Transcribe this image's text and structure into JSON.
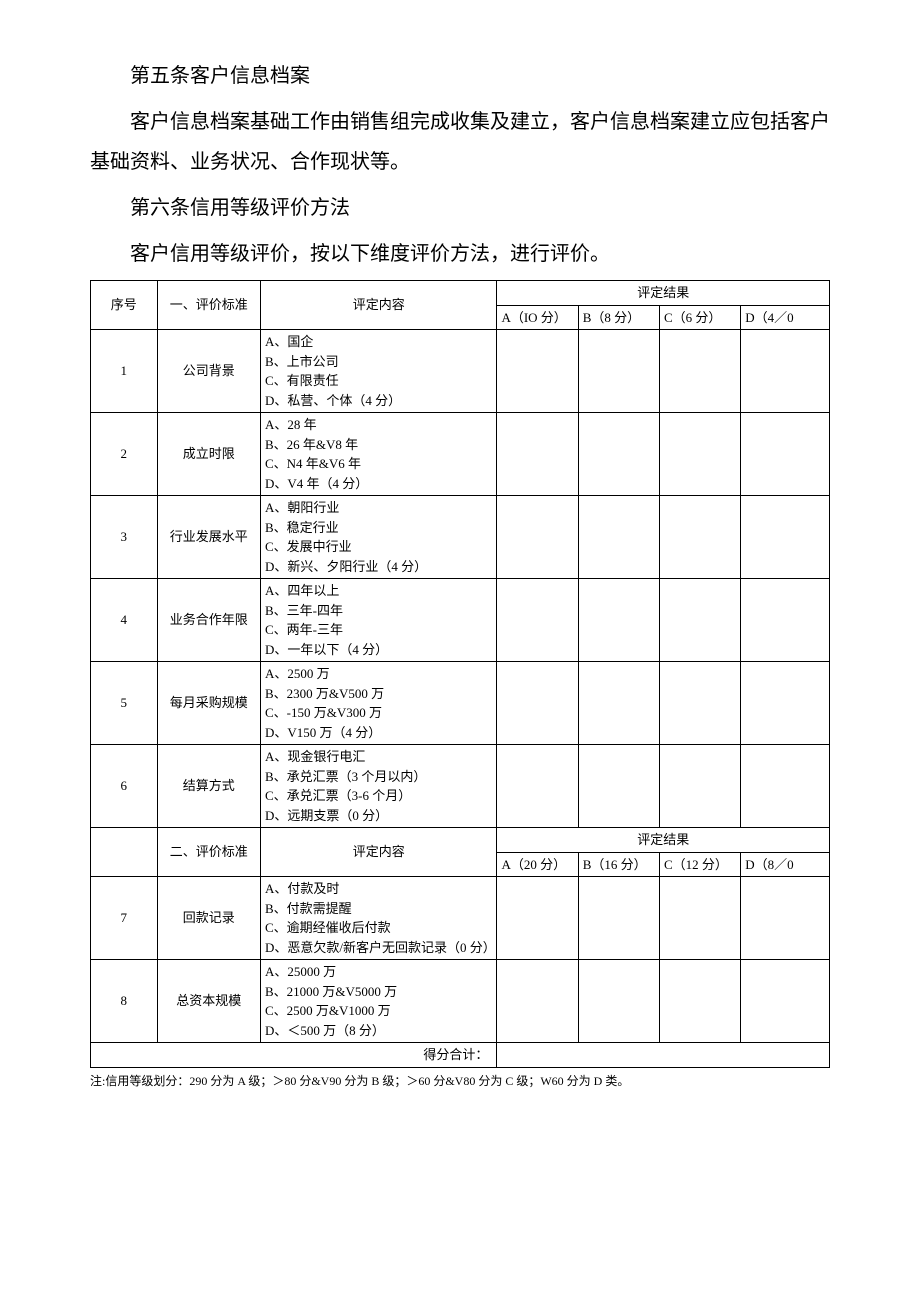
{
  "paragraphs": {
    "p1": "第五条客户信息档案",
    "p2": "客户信息档案基础工作由销售组完成收集及建立，客户信息档案建立应包括客户基础资料、业务状况、合作现状等。",
    "p3": "第六条信用等级评价方法",
    "p4": "客户信用等级评价，按以下维度评价方法，进行评价。"
  },
  "table": {
    "header1": {
      "col_seq": "序号",
      "col_std": "一、评价标准",
      "col_content": "评定内容",
      "col_result": "评定结果",
      "rA": "A（IO 分）",
      "rB": "B（8 分）",
      "rC": "C（6 分）",
      "rD": "D（4／0"
    },
    "rows1": [
      {
        "seq": "1",
        "std": "公司背景",
        "content": "A、国企\nB、上市公司\nC、有限责任\nD、私营、个体（4 分）"
      },
      {
        "seq": "2",
        "std": "成立时限",
        "content": "A、28 年\nB、26 年&V8 年\nC、N4 年&V6 年\nD、V4 年（4 分）"
      },
      {
        "seq": "3",
        "std": "行业发展水平",
        "content": "A、朝阳行业\nB、稳定行业\nC、发展中行业\nD、新兴、夕阳行业（4 分）"
      },
      {
        "seq": "4",
        "std": "业务合作年限",
        "content": "A、四年以上\nB、三年-四年\nC、两年-三年\nD、一年以下（4 分）"
      },
      {
        "seq": "5",
        "std": "每月采购规模",
        "content": "A、2500 万\nB、2300 万&V500 万\nC、-150 万&V300 万\nD、V150 万（4 分）"
      },
      {
        "seq": "6",
        "std": "结算方式",
        "content": "A、现金银行电汇\nB、承兑汇票（3 个月以内）\nC、承兑汇票（3-6 个月）\nD、远期支票（0 分）"
      }
    ],
    "header2": {
      "col_std": "二、评价标准",
      "col_content": "评定内容",
      "col_result": "评定结果",
      "rA": "A（20 分）",
      "rB": "B（16 分）",
      "rC": "C（12 分）",
      "rD": "D（8／0"
    },
    "rows2": [
      {
        "seq": "7",
        "std": "回款记录",
        "content": "A、付款及时\nB、付款需提醒\nC、逾期经催收后付款\nD、恶意欠款/新客户无回款记录（0 分）"
      },
      {
        "seq": "8",
        "std": "总资本规模",
        "content": "A、25000 万\nB、21000 万&V5000 万\nC、2500 万&V1000 万\nD、＜500 万（8 分）"
      }
    ],
    "total_label": "得分合计："
  },
  "footnote": "注:信用等级划分：290 分为 A 级；＞80 分&V90 分为 B 级；＞60 分&V80 分为 C 级；W60 分为 D 类。",
  "layout": {
    "col_widths": [
      "9%",
      "14%",
      "32%",
      "11%",
      "11%",
      "11%",
      "12%"
    ],
    "border_color": "#000000",
    "body_font_size_pt": 14,
    "para_font_size_pt": 20,
    "footnote_font_size_pt": 12,
    "background": "#ffffff",
    "text_color": "#000000"
  }
}
